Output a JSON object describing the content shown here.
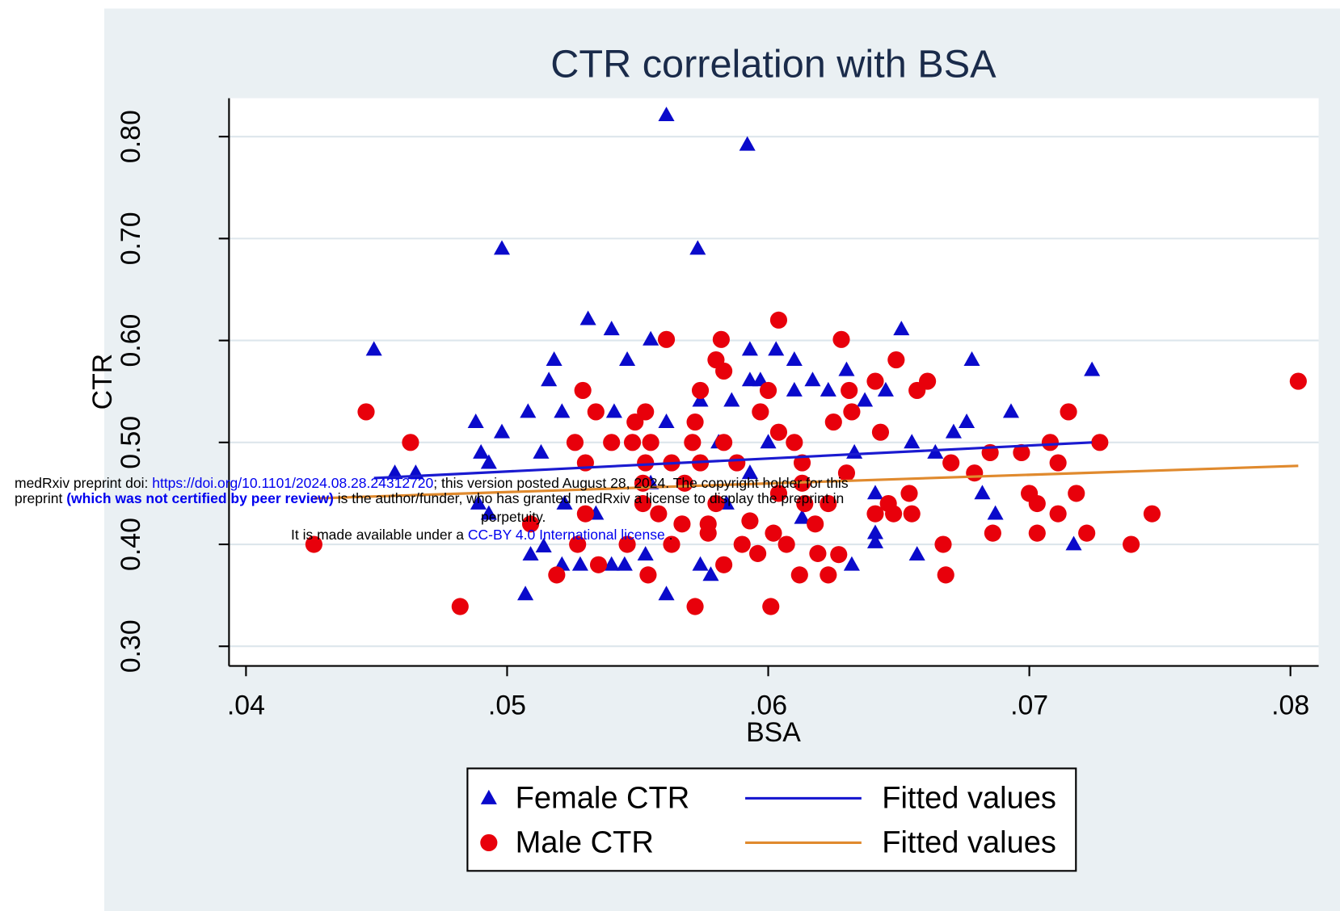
{
  "chart_data": {
    "type": "scatter",
    "title": "CTR correlation with BSA",
    "x_label": "BSA",
    "y_label": "CTR",
    "xlim": [
      0.03935,
      0.08108
    ],
    "ylim": [
      0.2807,
      0.8377
    ],
    "xticks": [
      {
        "value": 0.04,
        "label": ".04"
      },
      {
        "value": 0.05,
        "label": ".05"
      },
      {
        "value": 0.06,
        "label": ".06"
      },
      {
        "value": 0.07,
        "label": ".07"
      },
      {
        "value": 0.08,
        "label": ".08"
      }
    ],
    "yticks": [
      {
        "value": 0.3,
        "label": "0.30"
      },
      {
        "value": 0.4,
        "label": "0.40"
      },
      {
        "value": 0.5,
        "label": "0.50"
      },
      {
        "value": 0.6,
        "label": "0.60"
      },
      {
        "value": 0.7,
        "label": "0.70"
      },
      {
        "value": 0.8,
        "label": "0.80"
      }
    ],
    "grid": true,
    "legend_position": "bottom",
    "series": [
      {
        "name": "Female CTR",
        "marker": "triangle",
        "color": "#0a0acb",
        "x": [
          0.0561,
          0.0592,
          0.0498,
          0.0573,
          0.0449,
          0.0531,
          0.054,
          0.0651,
          0.0555,
          0.0546,
          0.0518,
          0.0593,
          0.0603,
          0.061,
          0.0678,
          0.0724,
          0.0516,
          0.0593,
          0.0597,
          0.0617,
          0.063,
          0.0645,
          0.061,
          0.0623,
          0.0574,
          0.0586,
          0.0637,
          0.0508,
          0.0521,
          0.0541,
          0.0693,
          0.0488,
          0.0676,
          0.0498,
          0.0671,
          0.0561,
          0.049,
          0.0513,
          0.0664,
          0.0655,
          0.0457,
          0.0465,
          0.0493,
          0.0581,
          0.06,
          0.0633,
          0.0641,
          0.0687,
          0.0682,
          0.0717,
          0.0641,
          0.0641,
          0.0632,
          0.0657,
          0.0509,
          0.0514,
          0.0521,
          0.0528,
          0.054,
          0.0545,
          0.0507,
          0.0561,
          0.0574,
          0.0578,
          0.0553,
          0.0534,
          0.0522,
          0.0555,
          0.0584,
          0.0593,
          0.0613,
          0.0489,
          0.0493
        ],
        "values": [
          0.821,
          0.792,
          0.69,
          0.69,
          0.591,
          0.621,
          0.611,
          0.611,
          0.601,
          0.581,
          0.581,
          0.591,
          0.591,
          0.581,
          0.581,
          0.571,
          0.561,
          0.561,
          0.561,
          0.561,
          0.571,
          0.551,
          0.551,
          0.551,
          0.541,
          0.541,
          0.541,
          0.53,
          0.53,
          0.53,
          0.53,
          0.52,
          0.52,
          0.51,
          0.51,
          0.52,
          0.49,
          0.49,
          0.49,
          0.5,
          0.47,
          0.47,
          0.48,
          0.5,
          0.5,
          0.49,
          0.45,
          0.43,
          0.45,
          0.4,
          0.411,
          0.402,
          0.38,
          0.39,
          0.39,
          0.398,
          0.38,
          0.38,
          0.38,
          0.38,
          0.351,
          0.351,
          0.38,
          0.37,
          0.39,
          0.43,
          0.44,
          0.46,
          0.44,
          0.47,
          0.426,
          0.44,
          0.43
        ]
      },
      {
        "name": "Male CTR",
        "marker": "circle",
        "color": "#e8000b",
        "x": [
          0.0803,
          0.0426,
          0.0446,
          0.0463,
          0.0482,
          0.0519,
          0.0572,
          0.0601,
          0.0561,
          0.0582,
          0.0604,
          0.0628,
          0.058,
          0.0583,
          0.0649,
          0.0641,
          0.0661,
          0.0657,
          0.0631,
          0.0574,
          0.06,
          0.0529,
          0.0534,
          0.0553,
          0.0597,
          0.0632,
          0.0715,
          0.0727,
          0.0708,
          0.0697,
          0.0685,
          0.067,
          0.0711,
          0.07,
          0.0703,
          0.0718,
          0.0711,
          0.0747,
          0.0722,
          0.0703,
          0.0686,
          0.0739,
          0.0667,
          0.0668,
          0.0655,
          0.0648,
          0.0641,
          0.0623,
          0.0612,
          0.0619,
          0.0627,
          0.0583,
          0.0596,
          0.0554,
          0.0535,
          0.0546,
          0.0527,
          0.053,
          0.0509,
          0.053,
          0.0526,
          0.054,
          0.0548,
          0.0555,
          0.0571,
          0.0583,
          0.061,
          0.0643,
          0.0549,
          0.0572,
          0.0604,
          0.0625,
          0.0553,
          0.0563,
          0.0574,
          0.0588,
          0.0613,
          0.063,
          0.0552,
          0.0568,
          0.058,
          0.0593,
          0.0602,
          0.0618,
          0.0614,
          0.0623,
          0.0567,
          0.0577,
          0.0558,
          0.0552,
          0.0604,
          0.0613,
          0.059,
          0.0607,
          0.0563,
          0.0577,
          0.0646,
          0.0654,
          0.0679
        ],
        "values": [
          0.56,
          0.4,
          0.53,
          0.5,
          0.339,
          0.37,
          0.339,
          0.339,
          0.601,
          0.601,
          0.62,
          0.601,
          0.581,
          0.57,
          0.581,
          0.56,
          0.56,
          0.551,
          0.551,
          0.551,
          0.551,
          0.551,
          0.53,
          0.53,
          0.53,
          0.53,
          0.53,
          0.5,
          0.5,
          0.49,
          0.49,
          0.48,
          0.48,
          0.45,
          0.44,
          0.45,
          0.43,
          0.43,
          0.411,
          0.411,
          0.411,
          0.4,
          0.4,
          0.37,
          0.43,
          0.43,
          0.43,
          0.37,
          0.37,
          0.391,
          0.39,
          0.38,
          0.391,
          0.37,
          0.38,
          0.4,
          0.4,
          0.43,
          0.42,
          0.48,
          0.5,
          0.5,
          0.5,
          0.5,
          0.5,
          0.5,
          0.5,
          0.51,
          0.52,
          0.52,
          0.51,
          0.52,
          0.48,
          0.48,
          0.48,
          0.48,
          0.48,
          0.47,
          0.46,
          0.46,
          0.44,
          0.423,
          0.411,
          0.42,
          0.44,
          0.44,
          0.42,
          0.42,
          0.43,
          0.44,
          0.45,
          0.46,
          0.4,
          0.4,
          0.4,
          0.411,
          0.44,
          0.45,
          0.47
        ]
      },
      {
        "name": "Fitted values",
        "marker": "line",
        "color": "#1a1ad0",
        "x": [
          0.0449,
          0.0724
        ],
        "values": [
          0.465,
          0.5
        ]
      },
      {
        "name": "Fitted values",
        "marker": "line",
        "color": "#e08a2e",
        "x": [
          0.0426,
          0.0803
        ],
        "values": [
          0.445,
          0.477
        ]
      }
    ]
  },
  "watermark": {
    "line1": [
      "medRxiv preprint doi: ",
      "https://doi.org/10.1101/2024.08.28.24312720",
      "; this version posted August 28, 2024. The copyright holder for this"
    ],
    "line2": [
      "preprint ",
      "(which was not certified by peer review)",
      " is the author/funder, who has granted medRxiv a license to display the preprint in"
    ],
    "line3": "perpetuity.",
    "line4": [
      "It is made available under a ",
      "CC-BY 4.0 International license",
      " ."
    ]
  }
}
